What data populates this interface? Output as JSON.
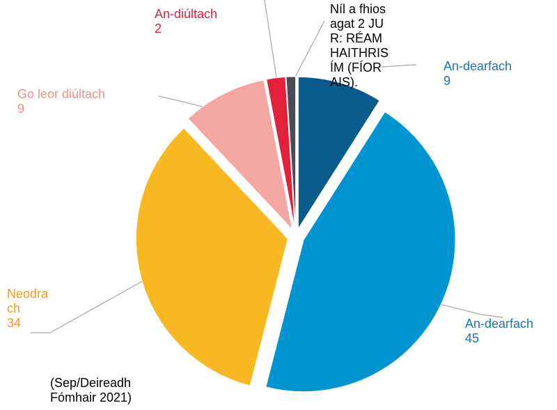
{
  "chart_data": {
    "type": "pie",
    "categories": [
      "An-dearfach",
      "An-dearfach",
      "Neodrach",
      "Go leor diúltach",
      "An-diúltach",
      "Níl a fhios agat 2 JUR: RÉAMHAITHRISÍM (FÍORAIS)."
    ],
    "values": [
      9,
      45,
      34,
      9,
      2,
      1
    ],
    "value_labels": [
      "9",
      "45",
      "34",
      "9",
      "2",
      null
    ],
    "colors": [
      "#0b5a8c",
      "#0095d0",
      "#f8b822",
      "#f4a6a2",
      "#e3203a",
      "#4d4d57"
    ],
    "label_colors": [
      "#1a74b8",
      "#1a74b8",
      "#f39a1e",
      "#f08f87",
      "#e3203a",
      "#000000"
    ],
    "note": "(Sep/Deireadh Fómhair 2021)"
  }
}
